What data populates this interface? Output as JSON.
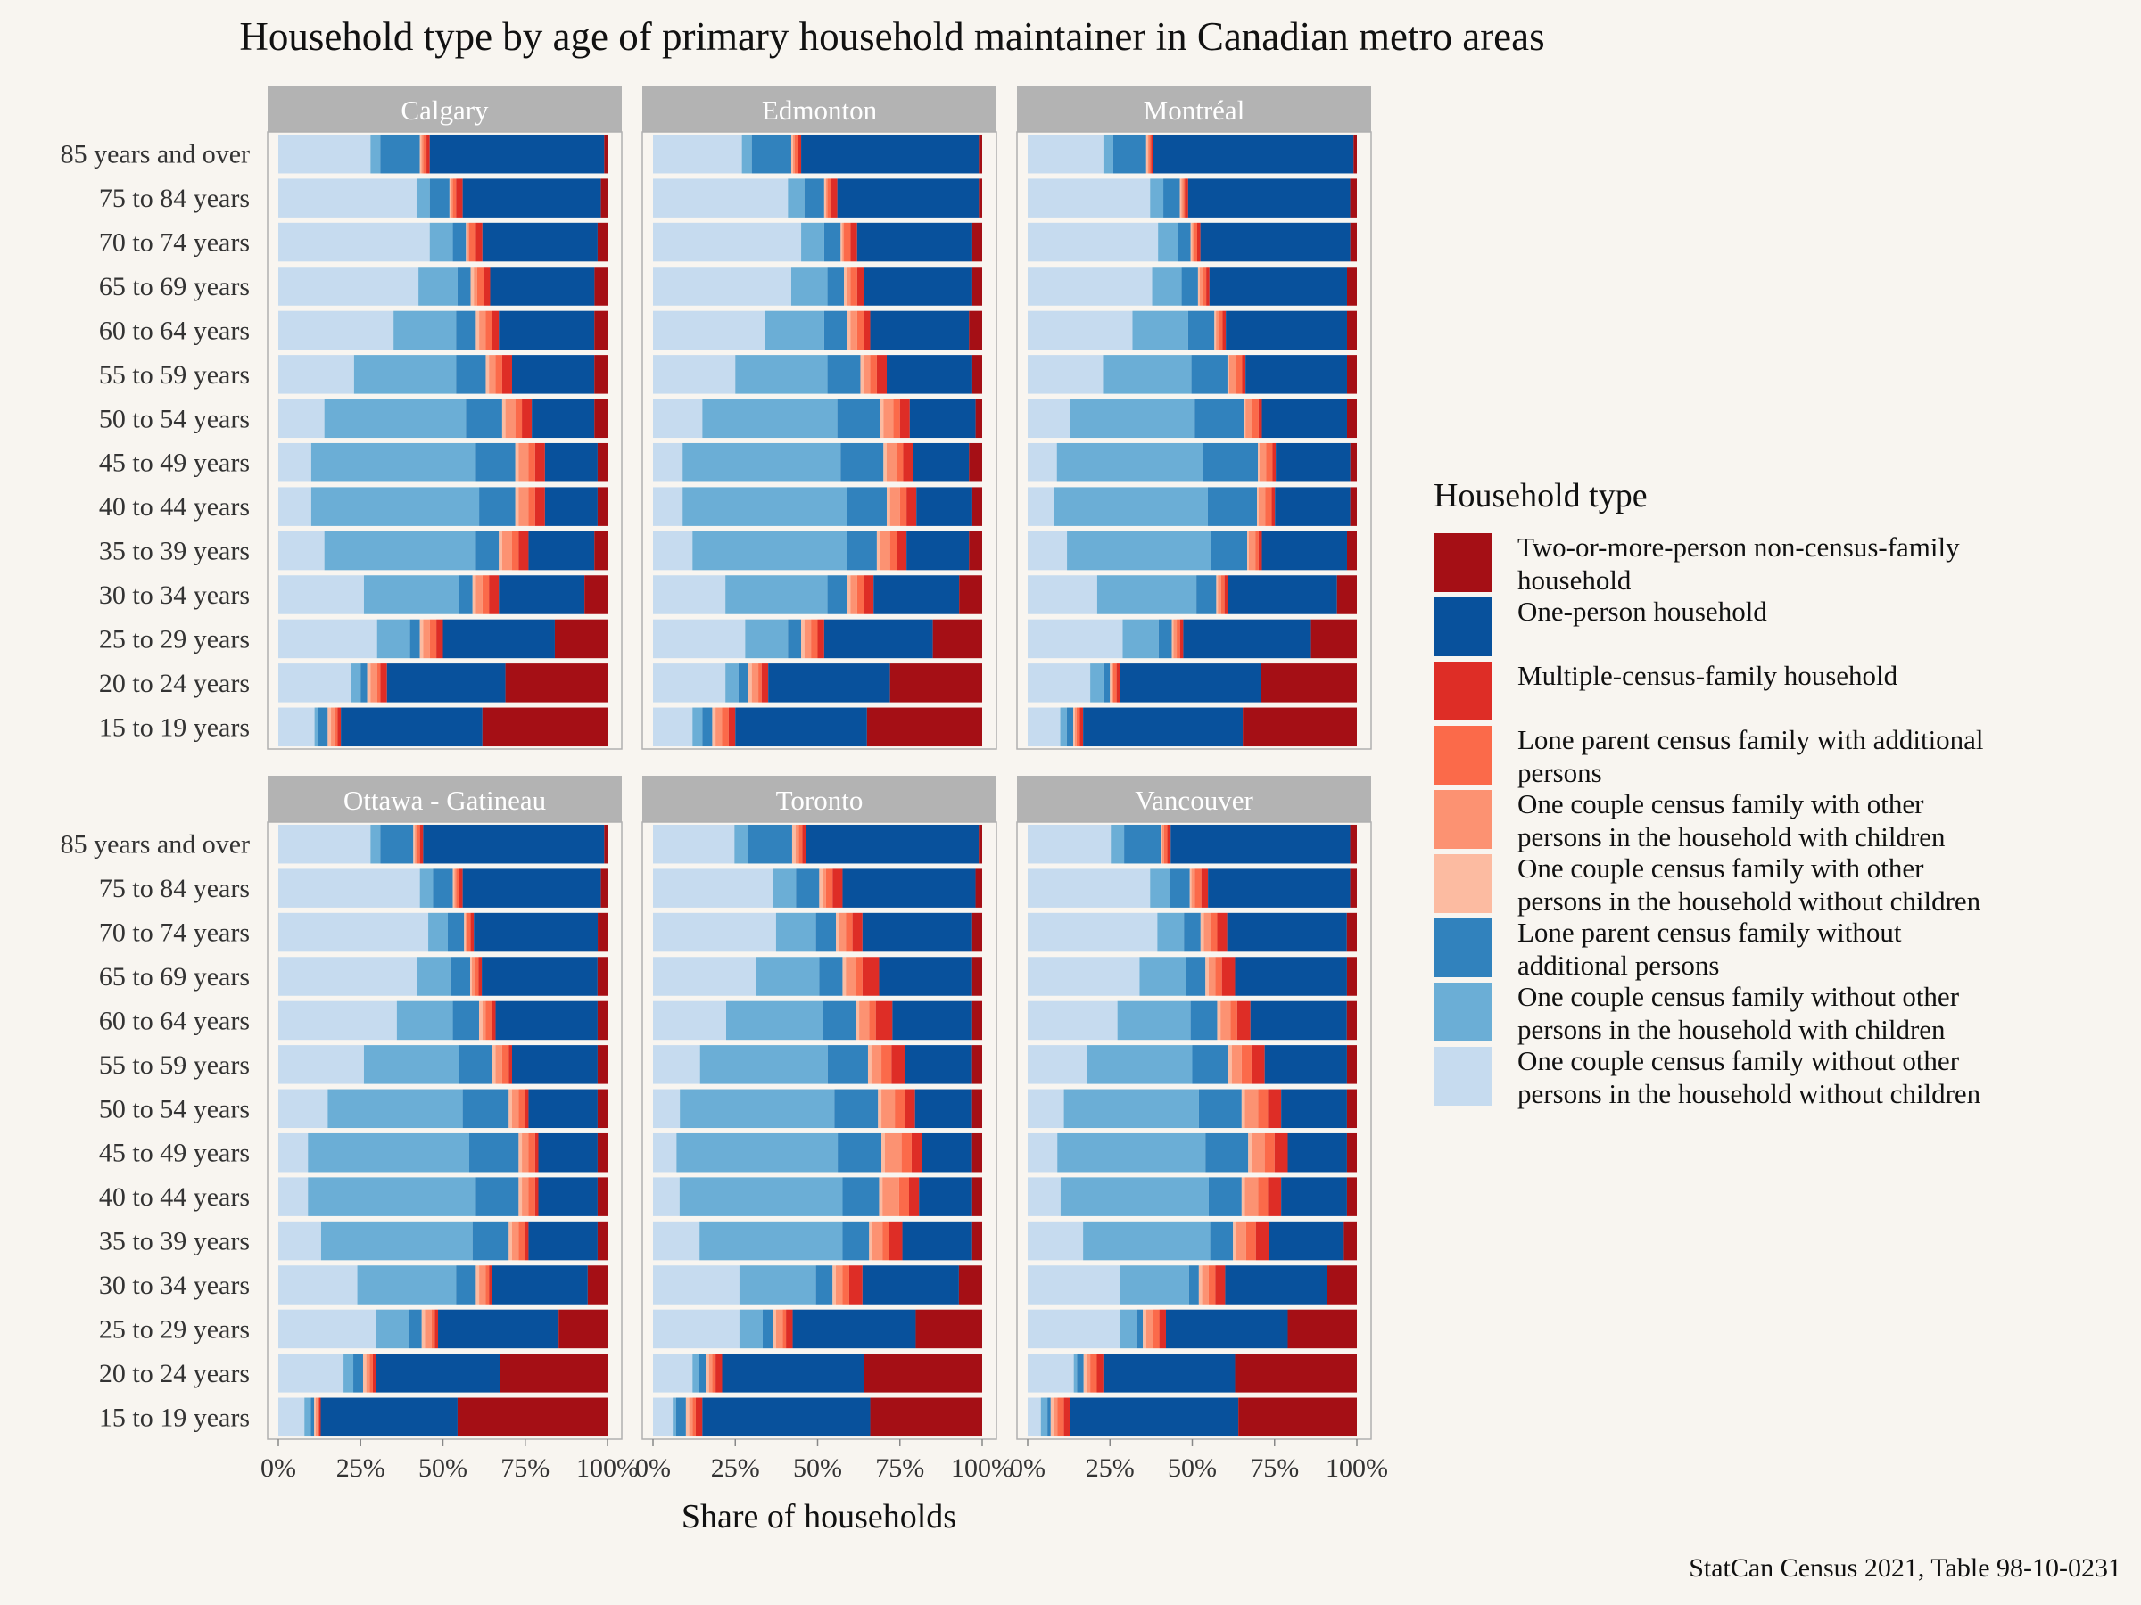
{
  "title": "Household type by age of primary household maintainer in Canadian metro areas",
  "caption": "StatCan Census 2021, Table 98-10-0231",
  "legend": {
    "title": "Household type",
    "items": [
      {
        "label": "Two-or-more-person non-census-family household",
        "color": "#a50f15"
      },
      {
        "label": "One-person household",
        "color": "#08519c"
      },
      {
        "label": "Multiple-census-family household",
        "color": "#de2d26"
      },
      {
        "label": "Lone parent census family with additional persons",
        "color": "#fb6a4a"
      },
      {
        "label": "One couple census family with other persons in the household with children",
        "color": "#fc9272"
      },
      {
        "label": "One couple census family with other persons in the household without children",
        "color": "#fcbba1"
      },
      {
        "label": "Lone parent census family without additional persons",
        "color": "#3182bd"
      },
      {
        "label": "One couple census family without other persons in the household with children",
        "color": "#6baed6"
      },
      {
        "label": "One couple census family without other persons in the household without children",
        "color": "#c6dbef"
      }
    ]
  },
  "chart_data": {
    "type": "bar",
    "orientation": "horizontal",
    "stacked": "percent",
    "title": "Household type by age of primary household maintainer in Canadian metro areas",
    "xlabel": "Share of households",
    "ylabel": "",
    "xlim": [
      0,
      1
    ],
    "x_ticks": [
      "0%",
      "25%",
      "50%",
      "75%",
      "100%"
    ],
    "categories": [
      "85 years and over",
      "75 to 84 years",
      "70 to 74 years",
      "65 to 69 years",
      "60 to 64 years",
      "55 to 59 years",
      "50 to 54 years",
      "45 to 49 years",
      "40 to 44 years",
      "35 to 39 years",
      "30 to 34 years",
      "25 to 29 years",
      "20 to 24 years",
      "15 to 19 years"
    ],
    "stack_order": [
      "One couple census family without other persons in the household without children",
      "One couple census family without other persons in the household with children",
      "Lone parent census family without additional persons",
      "One couple census family with other persons in the household without children",
      "One couple census family with other persons in the household with children",
      "Lone parent census family with additional persons",
      "Multiple-census-family household",
      "One-person household",
      "Two-or-more-person non-census-family household"
    ],
    "panels": [
      {
        "name": "Calgary",
        "rows": [
          [
            0.28,
            0.03,
            0.12,
            0.005,
            0.005,
            0.01,
            0.01,
            0.53,
            0.01
          ],
          [
            0.42,
            0.04,
            0.06,
            0.005,
            0.005,
            0.01,
            0.02,
            0.42,
            0.02
          ],
          [
            0.46,
            0.07,
            0.04,
            0.005,
            0.005,
            0.02,
            0.02,
            0.35,
            0.03
          ],
          [
            0.43,
            0.12,
            0.04,
            0.01,
            0.01,
            0.02,
            0.02,
            0.32,
            0.04
          ],
          [
            0.35,
            0.19,
            0.06,
            0.01,
            0.02,
            0.02,
            0.02,
            0.29,
            0.04
          ],
          [
            0.23,
            0.31,
            0.09,
            0.01,
            0.02,
            0.02,
            0.03,
            0.25,
            0.04
          ],
          [
            0.14,
            0.43,
            0.11,
            0.01,
            0.03,
            0.02,
            0.03,
            0.19,
            0.04
          ],
          [
            0.1,
            0.5,
            0.12,
            0.01,
            0.03,
            0.02,
            0.03,
            0.16,
            0.03
          ],
          [
            0.1,
            0.51,
            0.11,
            0.01,
            0.03,
            0.02,
            0.03,
            0.16,
            0.03
          ],
          [
            0.14,
            0.46,
            0.07,
            0.01,
            0.03,
            0.02,
            0.03,
            0.2,
            0.04
          ],
          [
            0.26,
            0.29,
            0.04,
            0.01,
            0.02,
            0.02,
            0.03,
            0.26,
            0.07
          ],
          [
            0.3,
            0.1,
            0.03,
            0.01,
            0.02,
            0.02,
            0.02,
            0.34,
            0.16
          ],
          [
            0.22,
            0.03,
            0.02,
            0.01,
            0.02,
            0.01,
            0.02,
            0.36,
            0.31
          ],
          [
            0.11,
            0.01,
            0.03,
            0.01,
            0.01,
            0.01,
            0.01,
            0.43,
            0.38
          ]
        ]
      },
      {
        "name": "Edmonton",
        "rows": [
          [
            0.27,
            0.03,
            0.12,
            0.005,
            0.005,
            0.01,
            0.01,
            0.54,
            0.01
          ],
          [
            0.41,
            0.05,
            0.06,
            0.005,
            0.005,
            0.01,
            0.02,
            0.43,
            0.01
          ],
          [
            0.45,
            0.07,
            0.05,
            0.005,
            0.005,
            0.02,
            0.02,
            0.35,
            0.03
          ],
          [
            0.42,
            0.11,
            0.05,
            0.01,
            0.01,
            0.02,
            0.02,
            0.33,
            0.03
          ],
          [
            0.34,
            0.18,
            0.07,
            0.01,
            0.02,
            0.02,
            0.02,
            0.3,
            0.04
          ],
          [
            0.25,
            0.28,
            0.1,
            0.01,
            0.02,
            0.02,
            0.03,
            0.26,
            0.03
          ],
          [
            0.15,
            0.41,
            0.13,
            0.01,
            0.03,
            0.02,
            0.03,
            0.2,
            0.02
          ],
          [
            0.09,
            0.48,
            0.13,
            0.01,
            0.03,
            0.02,
            0.03,
            0.17,
            0.04
          ],
          [
            0.09,
            0.5,
            0.12,
            0.01,
            0.03,
            0.02,
            0.03,
            0.17,
            0.03
          ],
          [
            0.12,
            0.47,
            0.09,
            0.01,
            0.03,
            0.02,
            0.03,
            0.19,
            0.04
          ],
          [
            0.22,
            0.31,
            0.06,
            0.01,
            0.02,
            0.02,
            0.03,
            0.26,
            0.07
          ],
          [
            0.28,
            0.13,
            0.04,
            0.01,
            0.02,
            0.02,
            0.02,
            0.33,
            0.15
          ],
          [
            0.22,
            0.04,
            0.03,
            0.01,
            0.02,
            0.01,
            0.02,
            0.37,
            0.28
          ],
          [
            0.12,
            0.03,
            0.03,
            0.01,
            0.02,
            0.02,
            0.02,
            0.4,
            0.35
          ]
        ]
      },
      {
        "name": "Montréal",
        "rows": [
          [
            0.23,
            0.03,
            0.1,
            0.005,
            0.005,
            0.005,
            0.005,
            0.61,
            0.01
          ],
          [
            0.37,
            0.04,
            0.05,
            0.005,
            0.005,
            0.005,
            0.01,
            0.49,
            0.02
          ],
          [
            0.4,
            0.06,
            0.04,
            0.005,
            0.005,
            0.01,
            0.01,
            0.46,
            0.02
          ],
          [
            0.38,
            0.09,
            0.05,
            0.005,
            0.01,
            0.01,
            0.01,
            0.42,
            0.03
          ],
          [
            0.32,
            0.17,
            0.08,
            0.005,
            0.01,
            0.01,
            0.01,
            0.37,
            0.03
          ],
          [
            0.23,
            0.27,
            0.11,
            0.005,
            0.02,
            0.02,
            0.01,
            0.31,
            0.03
          ],
          [
            0.13,
            0.38,
            0.15,
            0.005,
            0.02,
            0.02,
            0.01,
            0.26,
            0.03
          ],
          [
            0.09,
            0.45,
            0.17,
            0.005,
            0.02,
            0.02,
            0.01,
            0.23,
            0.02
          ],
          [
            0.08,
            0.47,
            0.15,
            0.005,
            0.02,
            0.02,
            0.01,
            0.23,
            0.02
          ],
          [
            0.12,
            0.44,
            0.11,
            0.005,
            0.02,
            0.01,
            0.01,
            0.26,
            0.03
          ],
          [
            0.21,
            0.3,
            0.06,
            0.005,
            0.01,
            0.01,
            0.01,
            0.33,
            0.06
          ],
          [
            0.29,
            0.11,
            0.04,
            0.005,
            0.01,
            0.01,
            0.01,
            0.39,
            0.14
          ],
          [
            0.19,
            0.04,
            0.02,
            0.005,
            0.005,
            0.01,
            0.01,
            0.43,
            0.29
          ],
          [
            0.1,
            0.02,
            0.02,
            0.005,
            0.005,
            0.01,
            0.01,
            0.49,
            0.35
          ]
        ]
      },
      {
        "name": "Ottawa - Gatineau",
        "rows": [
          [
            0.28,
            0.03,
            0.1,
            0.005,
            0.005,
            0.01,
            0.01,
            0.55,
            0.01
          ],
          [
            0.43,
            0.04,
            0.06,
            0.005,
            0.005,
            0.01,
            0.01,
            0.42,
            0.02
          ],
          [
            0.46,
            0.06,
            0.05,
            0.005,
            0.005,
            0.01,
            0.01,
            0.38,
            0.03
          ],
          [
            0.42,
            0.1,
            0.06,
            0.005,
            0.01,
            0.01,
            0.01,
            0.35,
            0.03
          ],
          [
            0.36,
            0.17,
            0.08,
            0.01,
            0.01,
            0.02,
            0.01,
            0.31,
            0.03
          ],
          [
            0.26,
            0.29,
            0.1,
            0.01,
            0.02,
            0.02,
            0.01,
            0.26,
            0.03
          ],
          [
            0.15,
            0.41,
            0.14,
            0.01,
            0.02,
            0.02,
            0.01,
            0.21,
            0.03
          ],
          [
            0.09,
            0.49,
            0.15,
            0.01,
            0.02,
            0.02,
            0.01,
            0.18,
            0.03
          ],
          [
            0.09,
            0.51,
            0.13,
            0.01,
            0.02,
            0.02,
            0.01,
            0.18,
            0.03
          ],
          [
            0.13,
            0.46,
            0.11,
            0.01,
            0.02,
            0.02,
            0.01,
            0.21,
            0.03
          ],
          [
            0.24,
            0.3,
            0.06,
            0.01,
            0.02,
            0.01,
            0.01,
            0.29,
            0.06
          ],
          [
            0.3,
            0.1,
            0.04,
            0.01,
            0.02,
            0.01,
            0.01,
            0.37,
            0.15
          ],
          [
            0.2,
            0.03,
            0.03,
            0.01,
            0.01,
            0.01,
            0.01,
            0.38,
            0.33
          ],
          [
            0.08,
            0.02,
            0.01,
            0.005,
            0.005,
            0.005,
            0.005,
            0.42,
            0.46
          ]
        ]
      },
      {
        "name": "Toronto",
        "rows": [
          [
            0.24,
            0.04,
            0.13,
            0.01,
            0.01,
            0.01,
            0.01,
            0.51,
            0.01
          ],
          [
            0.36,
            0.07,
            0.07,
            0.01,
            0.01,
            0.02,
            0.03,
            0.4,
            0.02
          ],
          [
            0.37,
            0.12,
            0.06,
            0.01,
            0.02,
            0.02,
            0.03,
            0.33,
            0.03
          ],
          [
            0.31,
            0.19,
            0.07,
            0.01,
            0.03,
            0.02,
            0.05,
            0.28,
            0.03
          ],
          [
            0.22,
            0.29,
            0.1,
            0.01,
            0.03,
            0.02,
            0.05,
            0.24,
            0.03
          ],
          [
            0.14,
            0.38,
            0.12,
            0.01,
            0.03,
            0.03,
            0.04,
            0.2,
            0.03
          ],
          [
            0.08,
            0.46,
            0.13,
            0.01,
            0.04,
            0.03,
            0.03,
            0.17,
            0.03
          ],
          [
            0.07,
            0.48,
            0.13,
            0.01,
            0.05,
            0.03,
            0.03,
            0.15,
            0.03
          ],
          [
            0.08,
            0.49,
            0.11,
            0.01,
            0.05,
            0.03,
            0.03,
            0.16,
            0.03
          ],
          [
            0.14,
            0.43,
            0.08,
            0.01,
            0.03,
            0.02,
            0.04,
            0.21,
            0.03
          ],
          [
            0.26,
            0.23,
            0.05,
            0.01,
            0.02,
            0.02,
            0.04,
            0.29,
            0.07
          ],
          [
            0.26,
            0.07,
            0.03,
            0.01,
            0.02,
            0.01,
            0.02,
            0.37,
            0.2
          ],
          [
            0.12,
            0.02,
            0.02,
            0.01,
            0.01,
            0.01,
            0.02,
            0.43,
            0.36
          ],
          [
            0.06,
            0.01,
            0.03,
            0.01,
            0.01,
            0.01,
            0.02,
            0.51,
            0.34
          ]
        ]
      },
      {
        "name": "Vancouver",
        "rows": [
          [
            0.25,
            0.04,
            0.11,
            0.005,
            0.005,
            0.01,
            0.01,
            0.54,
            0.02
          ],
          [
            0.37,
            0.06,
            0.06,
            0.005,
            0.01,
            0.02,
            0.02,
            0.43,
            0.02
          ],
          [
            0.39,
            0.08,
            0.05,
            0.01,
            0.02,
            0.02,
            0.03,
            0.36,
            0.03
          ],
          [
            0.34,
            0.14,
            0.06,
            0.01,
            0.02,
            0.02,
            0.04,
            0.34,
            0.03
          ],
          [
            0.27,
            0.22,
            0.08,
            0.01,
            0.03,
            0.02,
            0.04,
            0.29,
            0.03
          ],
          [
            0.18,
            0.32,
            0.11,
            0.01,
            0.03,
            0.03,
            0.04,
            0.25,
            0.03
          ],
          [
            0.11,
            0.41,
            0.13,
            0.01,
            0.04,
            0.03,
            0.04,
            0.2,
            0.03
          ],
          [
            0.09,
            0.45,
            0.13,
            0.01,
            0.04,
            0.03,
            0.04,
            0.18,
            0.03
          ],
          [
            0.1,
            0.45,
            0.1,
            0.01,
            0.04,
            0.03,
            0.04,
            0.2,
            0.03
          ],
          [
            0.17,
            0.39,
            0.07,
            0.01,
            0.03,
            0.03,
            0.04,
            0.23,
            0.04
          ],
          [
            0.28,
            0.21,
            0.03,
            0.01,
            0.02,
            0.02,
            0.03,
            0.31,
            0.09
          ],
          [
            0.28,
            0.05,
            0.02,
            0.01,
            0.02,
            0.02,
            0.02,
            0.37,
            0.21
          ],
          [
            0.14,
            0.01,
            0.02,
            0.01,
            0.01,
            0.02,
            0.02,
            0.4,
            0.37
          ],
          [
            0.04,
            0.02,
            0.01,
            0.01,
            0.01,
            0.02,
            0.02,
            0.51,
            0.36
          ]
        ]
      }
    ]
  }
}
